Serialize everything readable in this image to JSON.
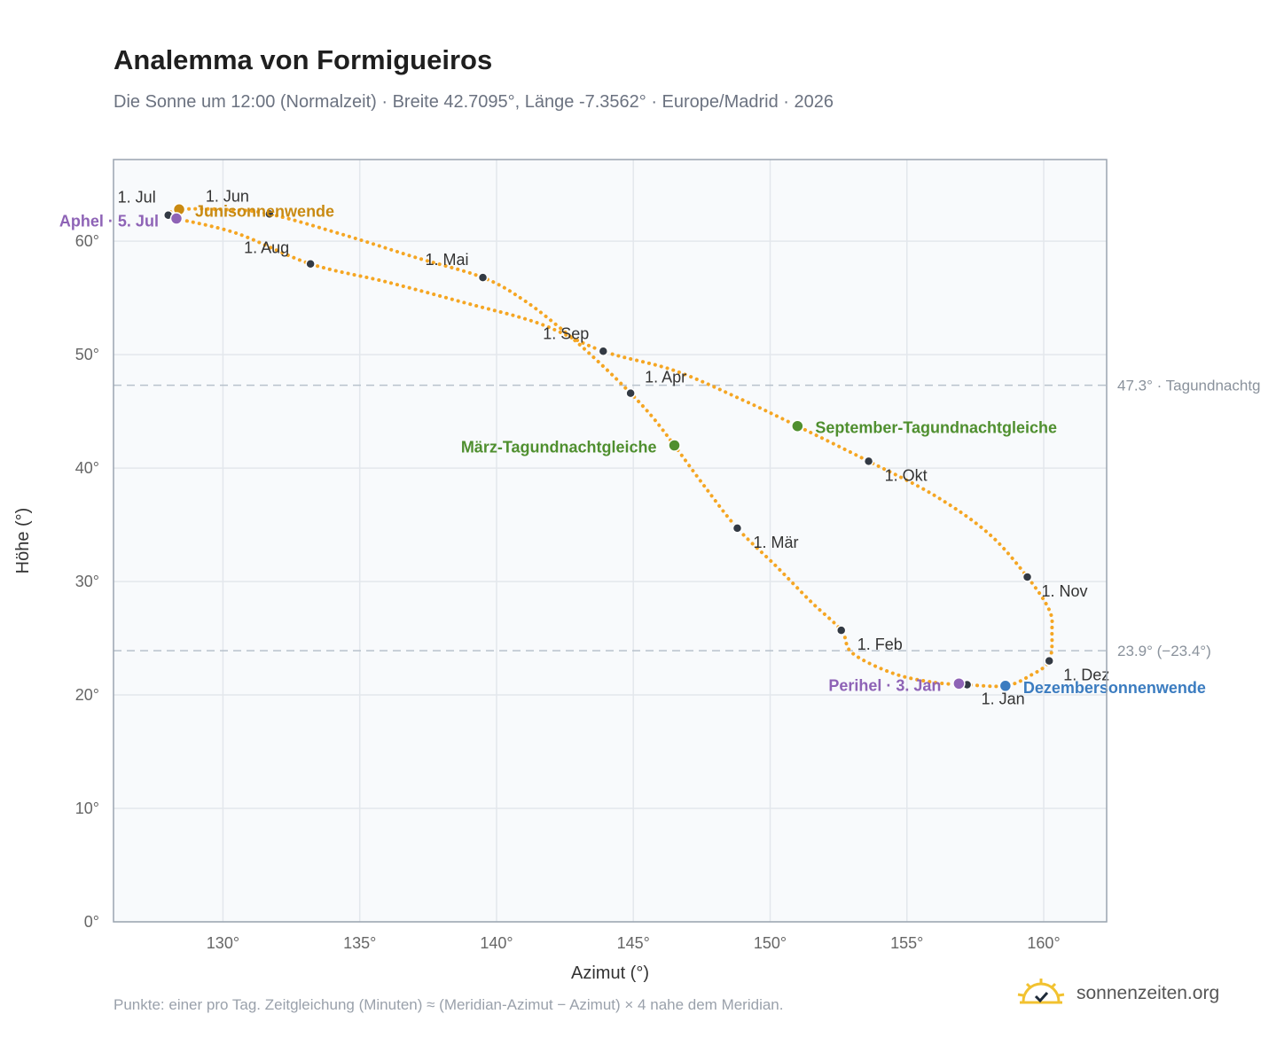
{
  "header": {
    "title": "Analemma von Formigueiros",
    "subtitle": "Die Sonne um 12:00 (Normalzeit) · Breite 42.7095°, Länge -7.3562° · Europe/Madrid · 2026"
  },
  "footer": {
    "note": "Punkte: einer pro Tag. Zeitgleichung (Minuten) ≈ (Meridian-Azimut − Azimut) × 4 nahe dem Meridian.",
    "brand": "sonnenzeiten.org"
  },
  "colors": {
    "path": "#f5a623",
    "month_dot": "#333a44",
    "solstice_june": "#c98a12",
    "solstice_december": "#3b7cc0",
    "equinox": "#4f8f2f",
    "apsis": "#8e63b6",
    "grid": "#e3e7ec",
    "ref_line": "#b8c2cc",
    "plot_bg": "#f8fafc"
  },
  "chart_data": {
    "type": "scatter",
    "xlabel": "Azimut (°)",
    "ylabel": "Höhe (°)",
    "xlim": [
      126,
      162.3
    ],
    "ylim": [
      0,
      67.2
    ],
    "x_ticks": [
      "130°",
      "135°",
      "140°",
      "145°",
      "150°",
      "155°",
      "160°"
    ],
    "x_tick_values": [
      130,
      135,
      140,
      145,
      150,
      155,
      160
    ],
    "y_ticks": [
      "0°",
      "10°",
      "20°",
      "30°",
      "40°",
      "50°",
      "60°"
    ],
    "y_tick_values": [
      0,
      10,
      20,
      30,
      40,
      50,
      60
    ],
    "grid": true,
    "reference_lines": [
      {
        "y": 47.3,
        "label": "47.3° · Tagundnachtg"
      },
      {
        "y": 23.9,
        "label": "23.9° (−23.4°)"
      }
    ],
    "analemma_path": [
      [
        157.2,
        20.9
      ],
      [
        156.0,
        21.1
      ],
      [
        154.5,
        21.9
      ],
      [
        153.0,
        23.7
      ],
      [
        152.6,
        25.7
      ],
      [
        151.5,
        28.2
      ],
      [
        150.2,
        31.4
      ],
      [
        148.8,
        34.7
      ],
      [
        147.6,
        38.4
      ],
      [
        146.5,
        42.0
      ],
      [
        145.7,
        44.5
      ],
      [
        144.9,
        46.6
      ],
      [
        143.8,
        49.2
      ],
      [
        142.5,
        52.0
      ],
      [
        141.0,
        54.8
      ],
      [
        139.5,
        56.8
      ],
      [
        137.0,
        58.6
      ],
      [
        134.5,
        60.5
      ],
      [
        131.7,
        62.4
      ],
      [
        130.0,
        62.8
      ],
      [
        128.4,
        62.8
      ],
      [
        128.0,
        62.3
      ],
      [
        128.3,
        62.0
      ],
      [
        130.5,
        60.7
      ],
      [
        133.2,
        58.0
      ],
      [
        136.0,
        56.4
      ],
      [
        138.8,
        54.6
      ],
      [
        141.5,
        52.8
      ],
      [
        143.9,
        50.3
      ],
      [
        146.5,
        48.6
      ],
      [
        149.0,
        46.0
      ],
      [
        151.0,
        43.7
      ],
      [
        153.6,
        40.6
      ],
      [
        156.0,
        37.6
      ],
      [
        158.0,
        34.2
      ],
      [
        159.4,
        30.4
      ],
      [
        160.2,
        27.5
      ],
      [
        160.3,
        25.6
      ],
      [
        160.2,
        23.0
      ],
      [
        159.5,
        21.7
      ],
      [
        158.6,
        20.8
      ],
      [
        157.2,
        20.9
      ]
    ],
    "month_markers": [
      {
        "label": "1. Jan",
        "x": 157.2,
        "y": 20.9
      },
      {
        "label": "1. Feb",
        "x": 152.6,
        "y": 25.7
      },
      {
        "label": "1. Mär",
        "x": 148.8,
        "y": 34.7
      },
      {
        "label": "1. Apr",
        "x": 144.9,
        "y": 46.6
      },
      {
        "label": "1. Mai",
        "x": 139.5,
        "y": 56.8
      },
      {
        "label": "1. Jun",
        "x": 131.7,
        "y": 62.4
      },
      {
        "label": "1. Jul",
        "x": 128.0,
        "y": 62.3
      },
      {
        "label": "1. Aug",
        "x": 133.2,
        "y": 58.0
      },
      {
        "label": "1. Sep",
        "x": 143.9,
        "y": 50.3
      },
      {
        "label": "1. Okt",
        "x": 153.6,
        "y": 40.6
      },
      {
        "label": "1. Nov",
        "x": 159.4,
        "y": 30.4
      },
      {
        "label": "1. Dez",
        "x": 160.2,
        "y": 23.0
      }
    ],
    "events": [
      {
        "label": "Junisonnenwende",
        "x": 128.4,
        "y": 62.8,
        "color": "#c98a12"
      },
      {
        "label": "Aphel · 5. Jul",
        "x": 128.3,
        "y": 62.0,
        "color": "#8e63b6"
      },
      {
        "label": "März-Tagundnachtgleiche",
        "x": 146.5,
        "y": 42.0,
        "color": "#4f8f2f"
      },
      {
        "label": "September-Tagundnachtgleiche",
        "x": 151.0,
        "y": 43.7,
        "color": "#4f8f2f"
      },
      {
        "label": "Perihel · 3. Jan",
        "x": 156.9,
        "y": 21.0,
        "color": "#8e63b6"
      },
      {
        "label": "Dezembersonnenwende",
        "x": 158.6,
        "y": 20.8,
        "color": "#3b7cc0"
      }
    ]
  }
}
